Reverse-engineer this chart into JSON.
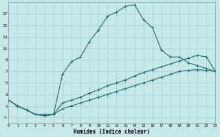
{
  "xlabel": "Humidex (Indice chaleur)",
  "bg_color": "#c5e8e8",
  "line_color": "#1a6b6b",
  "grid_color": "#aacece",
  "xmin": 0,
  "xmax": 23,
  "ymin": -2,
  "ymax": 19,
  "yticks": [
    -1,
    1,
    3,
    5,
    7,
    9,
    11,
    13,
    15,
    17
  ],
  "xticks": [
    0,
    1,
    2,
    3,
    4,
    5,
    6,
    7,
    8,
    9,
    10,
    11,
    12,
    13,
    14,
    15,
    16,
    17,
    18,
    19,
    20,
    21,
    22,
    23
  ],
  "line1_x": [
    0,
    1,
    2,
    3,
    4,
    5,
    6,
    7,
    8,
    9,
    10,
    11,
    12,
    13,
    14,
    15,
    16,
    17,
    18,
    19,
    20,
    21,
    22,
    23
  ],
  "line1_y": [
    2,
    1,
    0.3,
    -0.5,
    -0.7,
    -0.5,
    6.5,
    8.7,
    9.5,
    12.2,
    14.2,
    16.6,
    17.3,
    18.3,
    18.6,
    16.0,
    14.6,
    10.7,
    9.5,
    9.5,
    8.5,
    8.0,
    7.5,
    7.0
  ],
  "line2_x": [
    0,
    1,
    2,
    3,
    4,
    5,
    6,
    7,
    8,
    9,
    10,
    11,
    12,
    13,
    14,
    15,
    16,
    17,
    18,
    19,
    20,
    21,
    22,
    23
  ],
  "line2_y": [
    2,
    1,
    0.3,
    -0.5,
    -0.5,
    -0.5,
    1.5,
    2.0,
    2.5,
    3.2,
    3.8,
    4.5,
    5.0,
    5.5,
    6.2,
    6.8,
    7.3,
    7.8,
    8.3,
    8.8,
    9.3,
    9.8,
    9.5,
    7.0
  ],
  "line3_x": [
    0,
    1,
    2,
    3,
    4,
    5,
    6,
    7,
    8,
    9,
    10,
    11,
    12,
    13,
    14,
    15,
    16,
    17,
    18,
    19,
    20,
    21,
    22,
    23
  ],
  "line3_y": [
    2,
    1,
    0.3,
    -0.5,
    -0.7,
    -0.5,
    0.5,
    1.0,
    1.5,
    2.0,
    2.5,
    3.0,
    3.5,
    4.0,
    4.5,
    5.0,
    5.5,
    6.0,
    6.5,
    7.0,
    7.2,
    7.3,
    7.2,
    7.0
  ]
}
